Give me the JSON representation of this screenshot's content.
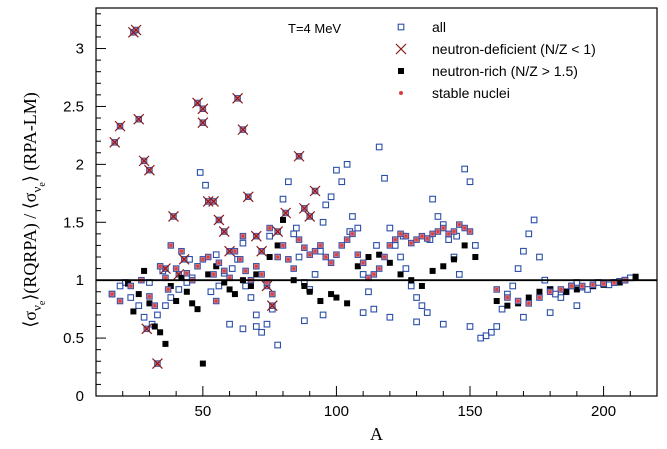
{
  "chart_data": {
    "type": "scatter",
    "xlabel": "A",
    "ylabel_parts": [
      "⟨σ",
      "ν",
      "e",
      "⟩(RQRPA) / ⟨σ",
      "ν",
      "e",
      "⟩ (RPA-LM)"
    ],
    "annotation": "T=4 MeV",
    "xlim": [
      10,
      220
    ],
    "ylim": [
      0,
      3.35
    ],
    "xticks": [
      50,
      100,
      150,
      200
    ],
    "xtick_labels": [
      "50",
      "100",
      "150",
      "200"
    ],
    "yticks": [
      0,
      0.5,
      1,
      1.5,
      2,
      2.5,
      3
    ],
    "ytick_labels": [
      "0",
      "0.5",
      "1",
      "1.5",
      "2",
      "2.5",
      "3"
    ],
    "reference_line_y": 1,
    "legend_position": "top-right",
    "colors": {
      "all": "#2b4fa8",
      "neutron_deficient": "#8b1a1a",
      "neutron_rich": "#000000",
      "stable": "#d84040",
      "stable_fill": "#d9707a"
    },
    "series": [
      {
        "name": "all",
        "marker": "open-square",
        "points": [
          [
            16,
            0.88
          ],
          [
            19,
            0.95
          ],
          [
            21,
            0.98
          ],
          [
            23,
            0.85
          ],
          [
            26,
            0.78
          ],
          [
            28,
            0.68
          ],
          [
            31,
            0.62
          ],
          [
            33,
            0.7
          ],
          [
            36,
            0.78
          ],
          [
            38,
            0.85
          ],
          [
            41,
            0.92
          ],
          [
            44,
            0.98
          ],
          [
            46,
            1.02
          ],
          [
            49,
            1.93
          ],
          [
            51,
            1.82
          ],
          [
            53,
            0.9
          ],
          [
            56,
            0.95
          ],
          [
            58,
            1.06
          ],
          [
            61,
            1.1
          ],
          [
            63,
            1.18
          ],
          [
            66,
            0.95
          ],
          [
            68,
            0.85
          ],
          [
            70,
            0.7
          ],
          [
            72,
            0.55
          ],
          [
            74,
            0.62
          ],
          [
            76,
            0.75
          ],
          [
            78,
            0.44
          ],
          [
            80,
            1.7
          ],
          [
            82,
            1.85
          ],
          [
            84,
            1.4
          ],
          [
            86,
            1.2
          ],
          [
            88,
            0.98
          ],
          [
            90,
            0.92
          ],
          [
            92,
            1.05
          ],
          [
            94,
            1.25
          ],
          [
            96,
            1.65
          ],
          [
            98,
            1.72
          ],
          [
            100,
            1.95
          ],
          [
            102,
            1.85
          ],
          [
            104,
            2.0
          ],
          [
            106,
            1.55
          ],
          [
            108,
            1.45
          ],
          [
            110,
            1.05
          ],
          [
            112,
            0.9
          ],
          [
            114,
            0.75
          ],
          [
            116,
            2.15
          ],
          [
            118,
            1.88
          ],
          [
            120,
            1.45
          ],
          [
            122,
            1.3
          ],
          [
            124,
            1.2
          ],
          [
            126,
            1.1
          ],
          [
            128,
            0.95
          ],
          [
            130,
            0.85
          ],
          [
            132,
            0.78
          ],
          [
            134,
            0.72
          ],
          [
            136,
            1.7
          ],
          [
            138,
            1.55
          ],
          [
            140,
            1.48
          ],
          [
            142,
            1.35
          ],
          [
            144,
            1.2
          ],
          [
            146,
            1.05
          ],
          [
            148,
            1.96
          ],
          [
            150,
            1.85
          ],
          [
            152,
            1.3
          ],
          [
            154,
            0.5
          ],
          [
            156,
            0.52
          ],
          [
            158,
            0.55
          ],
          [
            160,
            0.6
          ],
          [
            162,
            0.75
          ],
          [
            164,
            0.88
          ],
          [
            166,
            0.95
          ],
          [
            168,
            1.1
          ],
          [
            170,
            1.25
          ],
          [
            172,
            1.4
          ],
          [
            174,
            1.52
          ],
          [
            176,
            1.2
          ],
          [
            178,
            1.0
          ],
          [
            180,
            0.92
          ],
          [
            182,
            0.88
          ],
          [
            184,
            0.85
          ],
          [
            186,
            0.9
          ],
          [
            188,
            0.95
          ],
          [
            190,
            0.98
          ],
          [
            192,
            0.94
          ],
          [
            194,
            0.92
          ],
          [
            196,
            0.95
          ],
          [
            198,
            0.98
          ],
          [
            200,
            0.97
          ],
          [
            202,
            0.96
          ],
          [
            204,
            0.98
          ],
          [
            206,
            0.99
          ],
          [
            208,
            1.0
          ],
          [
            210,
            1.02
          ],
          [
            30,
            0.98
          ],
          [
            35,
            1.08
          ],
          [
            45,
            1.18
          ],
          [
            55,
            1.22
          ],
          [
            65,
            1.32
          ],
          [
            75,
            1.38
          ],
          [
            85,
            1.45
          ],
          [
            95,
            1.5
          ],
          [
            105,
            1.42
          ],
          [
            115,
            1.3
          ],
          [
            125,
            1.38
          ],
          [
            135,
            1.35
          ],
          [
            145,
            1.38
          ],
          [
            60,
            0.62
          ],
          [
            65,
            0.58
          ],
          [
            70,
            0.6
          ],
          [
            88,
            0.65
          ],
          [
            95,
            0.7
          ],
          [
            110,
            0.72
          ],
          [
            120,
            0.68
          ],
          [
            130,
            0.64
          ],
          [
            140,
            0.62
          ],
          [
            150,
            0.6
          ],
          [
            170,
            0.68
          ],
          [
            180,
            0.72
          ],
          [
            190,
            0.78
          ]
        ]
      },
      {
        "name": "neutron-deficient (N/Z < 1)",
        "marker": "cross",
        "points": [
          [
            17,
            2.19
          ],
          [
            19,
            2.33
          ],
          [
            24,
            3.14
          ],
          [
            25,
            3.16
          ],
          [
            26,
            2.39
          ],
          [
            28,
            2.03
          ],
          [
            30,
            1.95
          ],
          [
            33,
            0.28
          ],
          [
            39,
            1.55
          ],
          [
            43,
            1.18
          ],
          [
            48,
            2.53
          ],
          [
            50,
            2.48
          ],
          [
            50,
            2.36
          ],
          [
            52,
            1.68
          ],
          [
            54,
            1.68
          ],
          [
            56,
            1.52
          ],
          [
            58,
            1.42
          ],
          [
            60,
            1.25
          ],
          [
            63,
            2.57
          ],
          [
            65,
            2.3
          ],
          [
            67,
            1.72
          ],
          [
            70,
            1.38
          ],
          [
            72,
            1.25
          ],
          [
            74,
            0.95
          ],
          [
            76,
            0.78
          ],
          [
            78,
            1.42
          ],
          [
            81,
            1.58
          ],
          [
            86,
            2.07
          ],
          [
            88,
            1.62
          ],
          [
            90,
            1.55
          ],
          [
            92,
            1.77
          ],
          [
            29,
            0.58
          ],
          [
            36,
            1.1
          ],
          [
            41,
            1.05
          ]
        ]
      },
      {
        "name": "neutron-rich (N/Z > 1.5)",
        "marker": "filled-square",
        "points": [
          [
            22,
            0.97
          ],
          [
            24,
            0.73
          ],
          [
            26,
            0.88
          ],
          [
            28,
            1.08
          ],
          [
            30,
            0.8
          ],
          [
            32,
            0.6
          ],
          [
            34,
            0.55
          ],
          [
            36,
            0.45
          ],
          [
            38,
            0.95
          ],
          [
            40,
            0.82
          ],
          [
            42,
            1.02
          ],
          [
            44,
            0.9
          ],
          [
            46,
            0.8
          ],
          [
            48,
            0.75
          ],
          [
            50,
            0.28
          ],
          [
            52,
            1.05
          ],
          [
            55,
            1.12
          ],
          [
            58,
            0.98
          ],
          [
            60,
            0.92
          ],
          [
            62,
            0.88
          ],
          [
            65,
            1.0
          ],
          [
            68,
            0.95
          ],
          [
            70,
            1.05
          ],
          [
            75,
            1.2
          ],
          [
            78,
            1.3
          ],
          [
            80,
            1.52
          ],
          [
            84,
            1.0
          ],
          [
            88,
            0.95
          ],
          [
            90,
            0.9
          ],
          [
            94,
            0.82
          ],
          [
            98,
            0.88
          ],
          [
            100,
            0.85
          ],
          [
            104,
            0.8
          ],
          [
            108,
            1.12
          ],
          [
            112,
            1.2
          ],
          [
            116,
            1.22
          ],
          [
            120,
            1.15
          ],
          [
            124,
            1.05
          ],
          [
            128,
            1.0
          ],
          [
            132,
            0.95
          ],
          [
            136,
            1.08
          ],
          [
            140,
            1.12
          ],
          [
            144,
            1.18
          ],
          [
            148,
            1.3
          ],
          [
            152,
            1.2
          ],
          [
            160,
            0.82
          ],
          [
            164,
            0.78
          ],
          [
            168,
            0.8
          ],
          [
            172,
            0.85
          ],
          [
            176,
            0.9
          ],
          [
            180,
            0.92
          ],
          [
            186,
            0.9
          ],
          [
            190,
            0.92
          ],
          [
            196,
            0.95
          ],
          [
            200,
            0.96
          ],
          [
            206,
            0.98
          ],
          [
            212,
            1.03
          ]
        ]
      },
      {
        "name": "stable nuclei",
        "marker": "dot",
        "points": [
          [
            16,
            0.88
          ],
          [
            19,
            0.82
          ],
          [
            23,
            0.95
          ],
          [
            27,
            1.0
          ],
          [
            30,
            0.86
          ],
          [
            32,
            0.78
          ],
          [
            34,
            1.12
          ],
          [
            36,
            1.02
          ],
          [
            38,
            1.3
          ],
          [
            40,
            1.1
          ],
          [
            42,
            1.25
          ],
          [
            44,
            1.06
          ],
          [
            46,
            1.0
          ],
          [
            48,
            1.12
          ],
          [
            50,
            1.18
          ],
          [
            52,
            1.2
          ],
          [
            54,
            1.05
          ],
          [
            56,
            1.15
          ],
          [
            58,
            1.08
          ],
          [
            60,
            1.02
          ],
          [
            62,
            1.25
          ],
          [
            64,
            1.18
          ],
          [
            66,
            1.08
          ],
          [
            68,
            1.0
          ],
          [
            70,
            1.12
          ],
          [
            72,
            1.05
          ],
          [
            74,
            0.98
          ],
          [
            76,
            0.88
          ],
          [
            78,
            1.2
          ],
          [
            80,
            1.3
          ],
          [
            82,
            1.18
          ],
          [
            84,
            1.1
          ],
          [
            86,
            1.35
          ],
          [
            88,
            1.28
          ],
          [
            90,
            1.22
          ],
          [
            92,
            1.25
          ],
          [
            94,
            1.3
          ],
          [
            96,
            1.2
          ],
          [
            98,
            1.15
          ],
          [
            100,
            1.22
          ],
          [
            102,
            1.3
          ],
          [
            104,
            1.35
          ],
          [
            106,
            1.4
          ],
          [
            108,
            1.22
          ],
          [
            110,
            1.15
          ],
          [
            112,
            1.02
          ],
          [
            114,
            1.05
          ],
          [
            116,
            1.1
          ],
          [
            118,
            1.2
          ],
          [
            120,
            1.3
          ],
          [
            122,
            1.35
          ],
          [
            124,
            1.4
          ],
          [
            126,
            1.38
          ],
          [
            128,
            1.32
          ],
          [
            130,
            1.35
          ],
          [
            132,
            1.38
          ],
          [
            134,
            1.36
          ],
          [
            136,
            1.4
          ],
          [
            138,
            1.42
          ],
          [
            140,
            1.45
          ],
          [
            142,
            1.4
          ],
          [
            144,
            1.42
          ],
          [
            146,
            1.48
          ],
          [
            148,
            1.45
          ],
          [
            150,
            1.42
          ],
          [
            160,
            0.92
          ],
          [
            164,
            0.85
          ],
          [
            168,
            0.82
          ],
          [
            172,
            0.8
          ],
          [
            176,
            0.85
          ],
          [
            180,
            0.9
          ],
          [
            184,
            0.92
          ],
          [
            188,
            0.95
          ],
          [
            192,
            0.95
          ],
          [
            196,
            0.96
          ],
          [
            200,
            0.97
          ],
          [
            204,
            0.98
          ],
          [
            208,
            1.0
          ],
          [
            37,
            0.92
          ],
          [
            55,
            0.82
          ],
          [
            65,
            1.38
          ],
          [
            75,
            1.45
          ]
        ]
      }
    ]
  }
}
